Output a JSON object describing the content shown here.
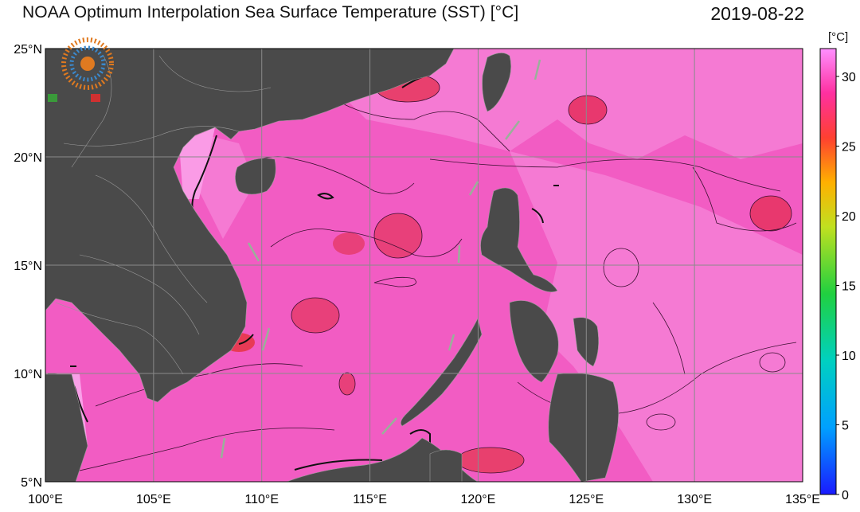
{
  "header": {
    "title": "NOAA Optimum Interpolation Sea Surface Temperature (SST) [°C]",
    "date": "2019-08-22"
  },
  "map": {
    "lon_range": [
      100,
      135
    ],
    "lat_range": [
      5,
      25
    ],
    "lon_ticks": [
      "100°E",
      "105°E",
      "110°E",
      "115°E",
      "120°E",
      "125°E",
      "130°E",
      "135°E"
    ],
    "lat_ticks": [
      "5°N",
      "10°N",
      "15°N",
      "20°N",
      "25°N"
    ],
    "land_color": "#4a4a4a",
    "sea_base_color": "#f060c0",
    "grid": true,
    "logo": "watermark-swirl-logo"
  },
  "colorbar": {
    "unit": "[°C]",
    "ticks": [
      "0",
      "5",
      "10",
      "15",
      "20",
      "25",
      "30"
    ],
    "tick_values": [
      0,
      5,
      10,
      15,
      20,
      25,
      30
    ],
    "range": [
      0,
      32
    ],
    "colors": [
      "#1a1aff",
      "#00a0ff",
      "#00d0c0",
      "#20d040",
      "#c0e020",
      "#ffb000",
      "#ff4030",
      "#ff30a0",
      "#ff90ff"
    ]
  }
}
